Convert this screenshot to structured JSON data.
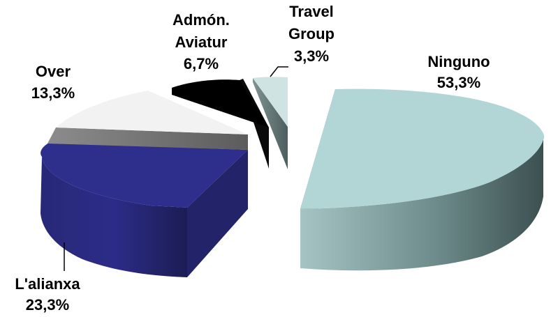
{
  "chart_data": {
    "type": "pie",
    "title": "",
    "three_d": true,
    "exploded": true,
    "slices": [
      {
        "name": "Ninguno",
        "value_label": "53,3%",
        "value": 53.3,
        "color": "#b2d6d6"
      },
      {
        "name": "L'alianxa",
        "value_label": "23,3%",
        "value": 23.3,
        "color": "#2e2e8c"
      },
      {
        "name": "Over",
        "value_label": "13,3%",
        "value": 13.3,
        "color": "#f2f2f2"
      },
      {
        "name": "Admón. Aviatur",
        "name_lines": [
          "Admón.",
          "Aviatur"
        ],
        "value_label": "6,7%",
        "value": 6.7,
        "color": "#000000"
      },
      {
        "name": "Travel Group",
        "name_lines": [
          "Travel",
          "Group"
        ],
        "value_label": "3,3%",
        "value": 3.3,
        "color": "#cfe3e3"
      }
    ]
  }
}
